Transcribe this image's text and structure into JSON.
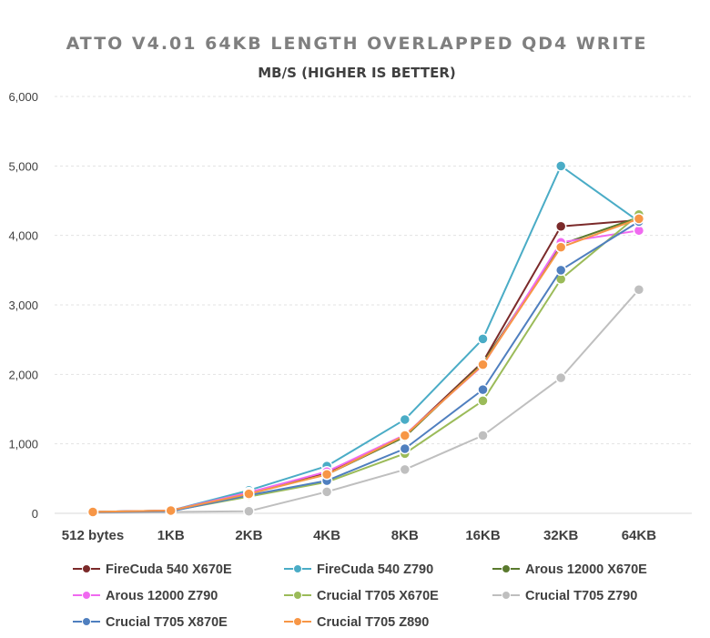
{
  "chart_data": {
    "type": "line",
    "title": "ATTO V4.01 64KB LENGTH OVERLAPPED QD4 WRITE",
    "subtitle": "MB/S (HIGHER IS BETTER)",
    "categories": [
      "512 bytes",
      "1KB",
      "2KB",
      "4KB",
      "8KB",
      "16KB",
      "32KB",
      "64KB"
    ],
    "ylim": [
      0,
      6000
    ],
    "yticks": [
      0,
      1000,
      2000,
      3000,
      4000,
      5000,
      6000
    ],
    "ytick_labels": [
      "0",
      "1,000",
      "2,000",
      "3,000",
      "4,000",
      "5,000",
      "6,000"
    ],
    "grid": true,
    "legend_position": "bottom",
    "series": [
      {
        "name": "FireCuda 540 X670E",
        "color": "#7b2a2a",
        "values": [
          20,
          40,
          300,
          580,
          1120,
          2180,
          4130,
          4220
        ]
      },
      {
        "name": "FireCuda 540 Z790",
        "color": "#4aacc6",
        "values": [
          20,
          40,
          330,
          680,
          1350,
          2510,
          5000,
          4200
        ]
      },
      {
        "name": "Arous 12000 X670E",
        "color": "#5a7a2e",
        "values": [
          20,
          40,
          290,
          560,
          1100,
          2160,
          3870,
          4260
        ]
      },
      {
        "name": "Arous 12000 Z790",
        "color": "#f06af0",
        "values": [
          20,
          40,
          300,
          600,
          1130,
          2130,
          3900,
          4070
        ]
      },
      {
        "name": "Crucial T705 X670E",
        "color": "#9bbb59",
        "values": [
          20,
          35,
          240,
          450,
          860,
          1620,
          3370,
          4300
        ]
      },
      {
        "name": "Crucial T705 Z790",
        "color": "#bfbfbf",
        "values": [
          10,
          20,
          30,
          310,
          630,
          1120,
          1950,
          3220
        ]
      },
      {
        "name": "Crucial T705 X870E",
        "color": "#4f7fbf",
        "values": [
          15,
          30,
          260,
          470,
          930,
          1780,
          3500,
          4200
        ]
      },
      {
        "name": "Crucial T705 Z890",
        "color": "#f79646",
        "values": [
          20,
          40,
          280,
          560,
          1120,
          2140,
          3830,
          4240
        ]
      }
    ]
  }
}
